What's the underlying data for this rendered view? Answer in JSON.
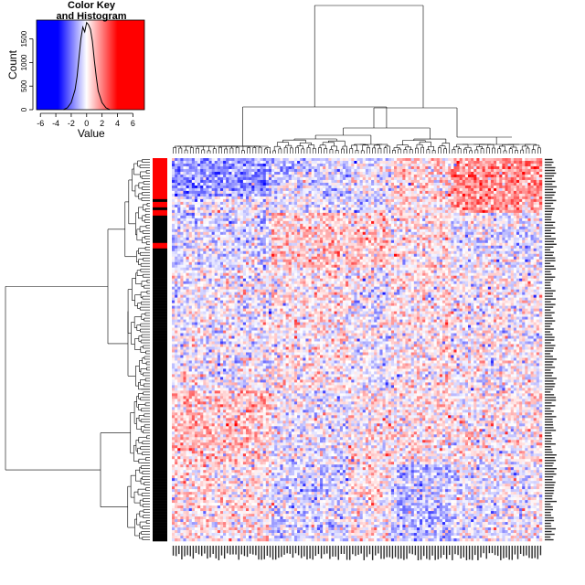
{
  "chart_data": {
    "type": "heatmap",
    "color_key": {
      "title_line1": "Color Key",
      "title_line2": "and Histogram",
      "xlabel": "Value",
      "ylabel": "Count",
      "x_ticks": [
        "-6",
        "-4",
        "-2",
        "0",
        "2",
        "4",
        "6"
      ],
      "x_tick_values": [
        -6,
        -4,
        -2,
        0,
        2,
        4,
        6
      ],
      "xlim": [
        -6.5,
        7.5
      ],
      "y_ticks": [
        "0",
        "500",
        "1000",
        "1500"
      ],
      "y_tick_values": [
        0,
        500,
        1000,
        1500
      ],
      "ylim": [
        0,
        1900
      ],
      "colors": {
        "low": "#0000ff",
        "mid": "#ffffff",
        "high": "#ff0000"
      },
      "histogram": {
        "bin_centers": [
          -3.0,
          -2.5,
          -2.0,
          -1.5,
          -1.25,
          -1.0,
          -0.75,
          -0.5,
          -0.25,
          0.0,
          0.25,
          0.5,
          0.75,
          1.0,
          1.25,
          1.5,
          2.0,
          2.5,
          3.0
        ],
        "counts": [
          0,
          40,
          150,
          420,
          700,
          1100,
          1500,
          1750,
          1650,
          1850,
          1800,
          1700,
          1450,
          1050,
          700,
          400,
          150,
          40,
          0
        ]
      }
    },
    "heatmap": {
      "n_rows": 140,
      "n_cols": 130,
      "value_range": [
        -4,
        4
      ],
      "row_side_colors": {
        "red": "#ff0000",
        "black": "#000000"
      },
      "row_side_red_rows": [
        0,
        1,
        2,
        3,
        4,
        5,
        6,
        7,
        8,
        9,
        10,
        11,
        12,
        13,
        14,
        16,
        17,
        19,
        20,
        31,
        32
      ],
      "row_dendrogram": true,
      "col_dendrogram": true
    }
  }
}
